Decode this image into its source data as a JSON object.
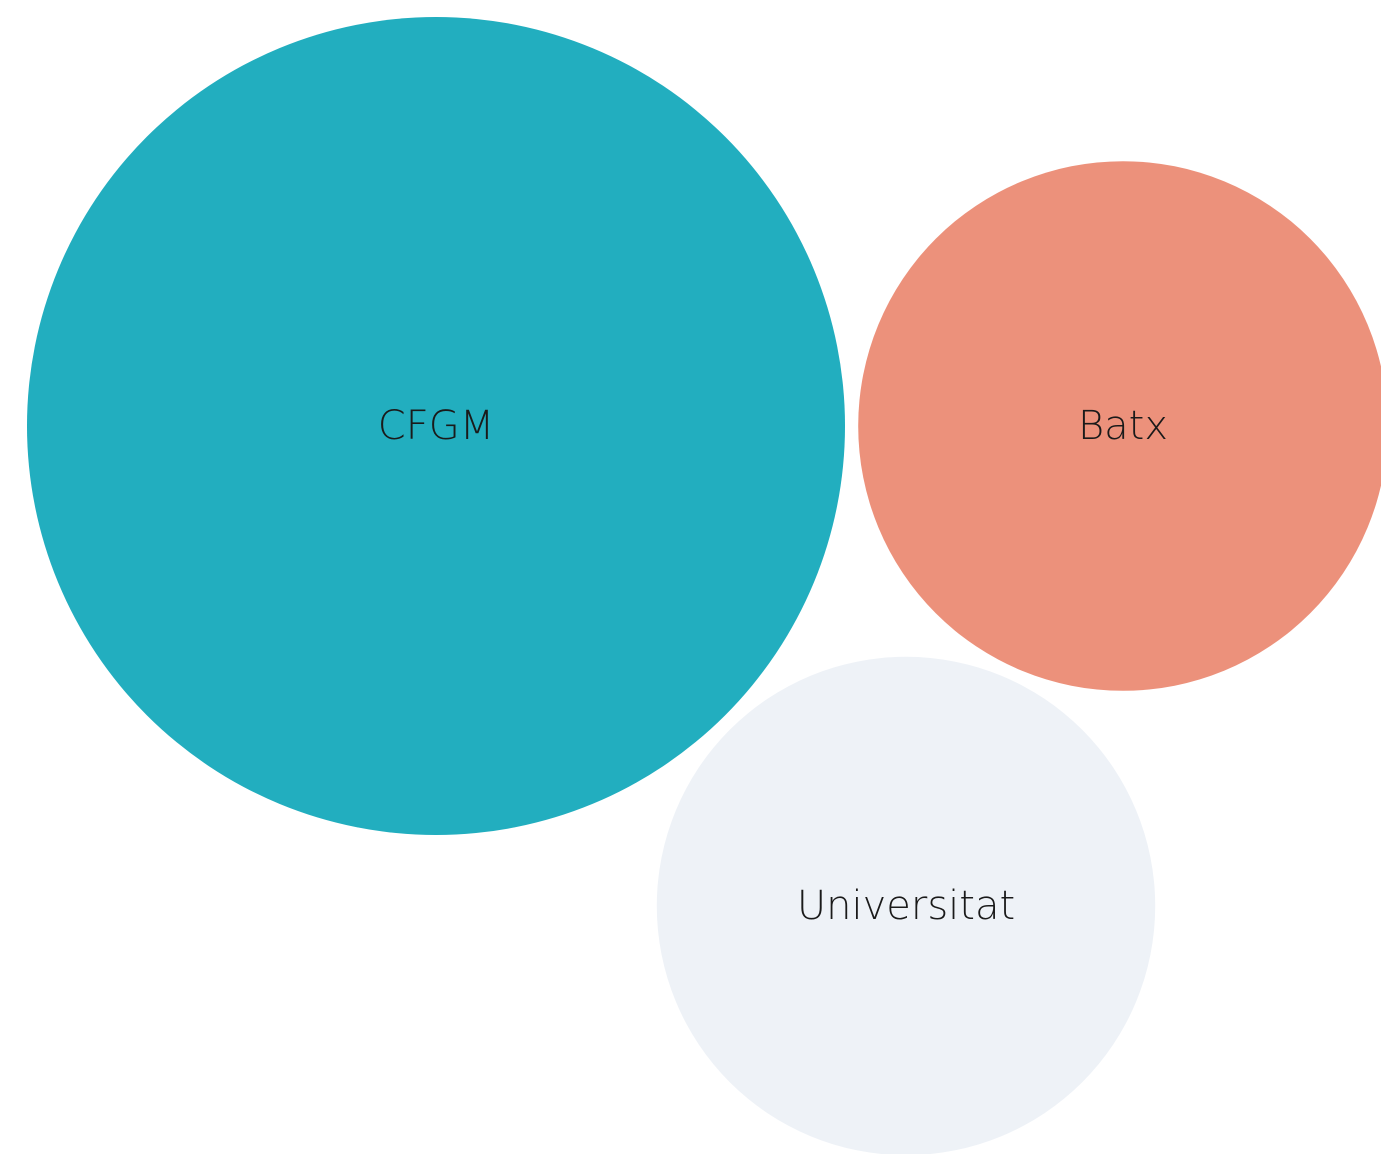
{
  "chart_data": {
    "type": "bubble",
    "categories": [
      "CFGM",
      "Batx",
      "Universitat"
    ],
    "values": [
      167,
      70,
      62
    ],
    "colors": [
      "#22aebf",
      "#ec917b",
      "#eef2f7"
    ]
  }
}
